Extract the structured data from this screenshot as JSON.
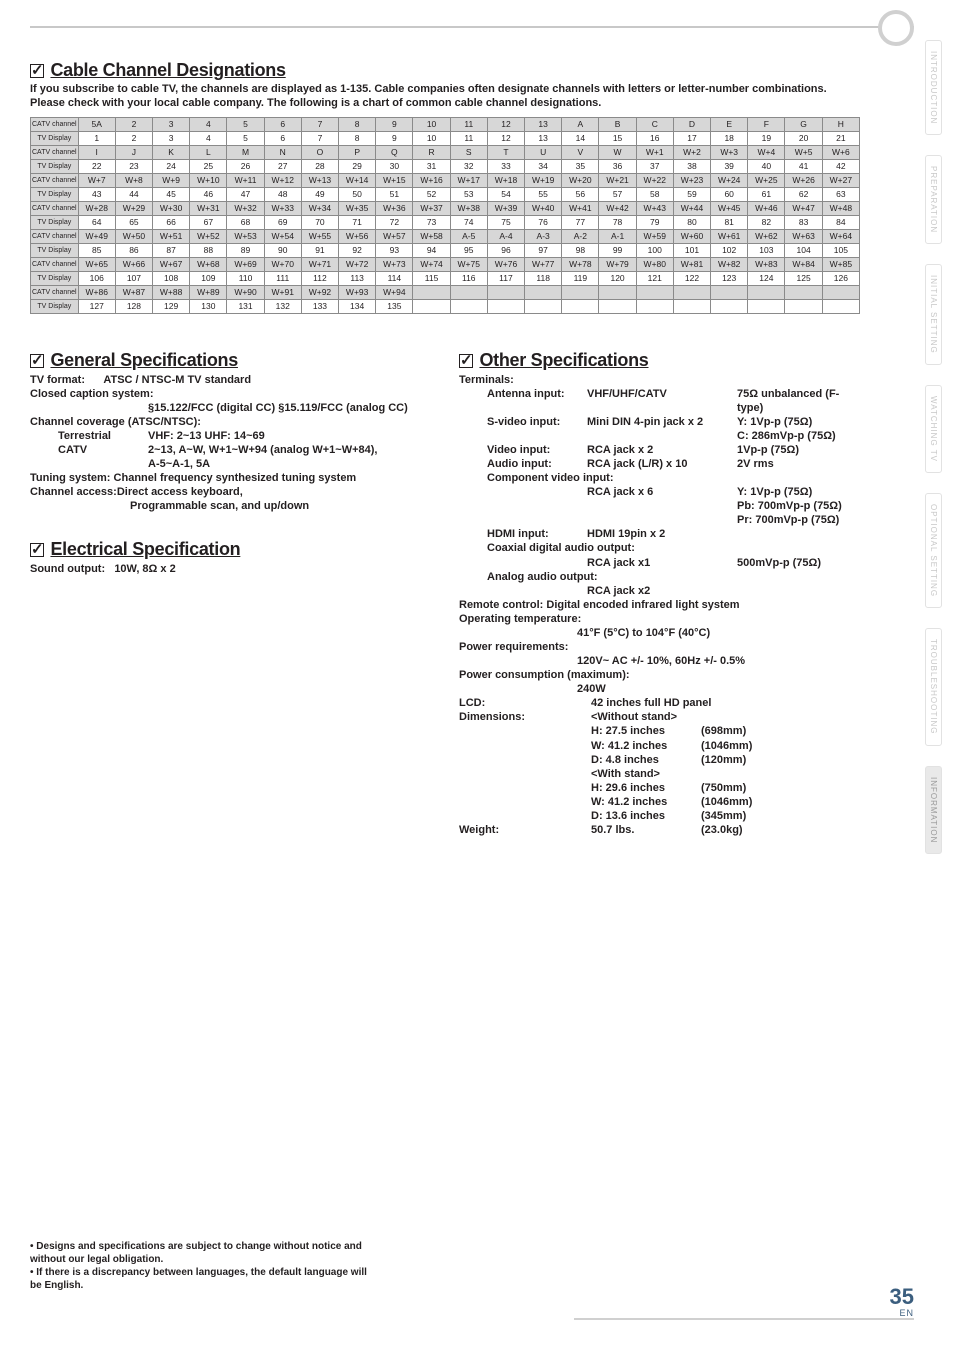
{
  "sidetabs": [
    "INTRODUCTION",
    "PREPARATION",
    "INITIAL SETTING",
    "WATCHING TV",
    "OPTIONAL SETTING",
    "TROUBLESHOOTING",
    "INFORMATION"
  ],
  "cable": {
    "title": "Cable Channel Designations",
    "intro": "If you subscribe to cable TV, the channels are displayed as 1-135. Cable companies often designate channels with letters or letter-number combinations. Please check with your local cable company. The following is a chart of common cable channel designations.",
    "row_labels": {
      "catv": "CATV channel",
      "tv": "TV Display"
    },
    "pairs": [
      {
        "catv": [
          "5A",
          "2",
          "3",
          "4",
          "5",
          "6",
          "7",
          "8",
          "9",
          "10",
          "11",
          "12",
          "13",
          "A",
          "B",
          "C",
          "D",
          "E",
          "F",
          "G",
          "H"
        ],
        "tv": [
          "1",
          "2",
          "3",
          "4",
          "5",
          "6",
          "7",
          "8",
          "9",
          "10",
          "11",
          "12",
          "13",
          "14",
          "15",
          "16",
          "17",
          "18",
          "19",
          "20",
          "21"
        ]
      },
      {
        "catv": [
          "I",
          "J",
          "K",
          "L",
          "M",
          "N",
          "O",
          "P",
          "Q",
          "R",
          "S",
          "T",
          "U",
          "V",
          "W",
          "W+1",
          "W+2",
          "W+3",
          "W+4",
          "W+5",
          "W+6"
        ],
        "tv": [
          "22",
          "23",
          "24",
          "25",
          "26",
          "27",
          "28",
          "29",
          "30",
          "31",
          "32",
          "33",
          "34",
          "35",
          "36",
          "37",
          "38",
          "39",
          "40",
          "41",
          "42"
        ]
      },
      {
        "catv": [
          "W+7",
          "W+8",
          "W+9",
          "W+10",
          "W+11",
          "W+12",
          "W+13",
          "W+14",
          "W+15",
          "W+16",
          "W+17",
          "W+18",
          "W+19",
          "W+20",
          "W+21",
          "W+22",
          "W+23",
          "W+24",
          "W+25",
          "W+26",
          "W+27"
        ],
        "tv": [
          "43",
          "44",
          "45",
          "46",
          "47",
          "48",
          "49",
          "50",
          "51",
          "52",
          "53",
          "54",
          "55",
          "56",
          "57",
          "58",
          "59",
          "60",
          "61",
          "62",
          "63"
        ]
      },
      {
        "catv": [
          "W+28",
          "W+29",
          "W+30",
          "W+31",
          "W+32",
          "W+33",
          "W+34",
          "W+35",
          "W+36",
          "W+37",
          "W+38",
          "W+39",
          "W+40",
          "W+41",
          "W+42",
          "W+43",
          "W+44",
          "W+45",
          "W+46",
          "W+47",
          "W+48"
        ],
        "tv": [
          "64",
          "65",
          "66",
          "67",
          "68",
          "69",
          "70",
          "71",
          "72",
          "73",
          "74",
          "75",
          "76",
          "77",
          "78",
          "79",
          "80",
          "81",
          "82",
          "83",
          "84"
        ]
      },
      {
        "catv": [
          "W+49",
          "W+50",
          "W+51",
          "W+52",
          "W+53",
          "W+54",
          "W+55",
          "W+56",
          "W+57",
          "W+58",
          "A-5",
          "A-4",
          "A-3",
          "A-2",
          "A-1",
          "W+59",
          "W+60",
          "W+61",
          "W+62",
          "W+63",
          "W+64"
        ],
        "tv": [
          "85",
          "86",
          "87",
          "88",
          "89",
          "90",
          "91",
          "92",
          "93",
          "94",
          "95",
          "96",
          "97",
          "98",
          "99",
          "100",
          "101",
          "102",
          "103",
          "104",
          "105"
        ]
      },
      {
        "catv": [
          "W+65",
          "W+66",
          "W+67",
          "W+68",
          "W+69",
          "W+70",
          "W+71",
          "W+72",
          "W+73",
          "W+74",
          "W+75",
          "W+76",
          "W+77",
          "W+78",
          "W+79",
          "W+80",
          "W+81",
          "W+82",
          "W+83",
          "W+84",
          "W+85"
        ],
        "tv": [
          "106",
          "107",
          "108",
          "109",
          "110",
          "111",
          "112",
          "113",
          "114",
          "115",
          "116",
          "117",
          "118",
          "119",
          "120",
          "121",
          "122",
          "123",
          "124",
          "125",
          "126"
        ]
      },
      {
        "catv": [
          "W+86",
          "W+87",
          "W+88",
          "W+89",
          "W+90",
          "W+91",
          "W+92",
          "W+93",
          "W+94",
          "",
          "",
          "",
          "",
          "",
          "",
          "",
          "",
          "",
          "",
          "",
          ""
        ],
        "tv": [
          "127",
          "128",
          "129",
          "130",
          "131",
          "132",
          "133",
          "134",
          "135",
          "",
          "",
          "",
          "",
          "",
          "",
          "",
          "",
          "",
          "",
          "",
          ""
        ]
      }
    ]
  },
  "general": {
    "title": "General Specifications",
    "tv_format_label": "TV format:",
    "tv_format": "ATSC / NTSC-M TV standard",
    "cc_label": "Closed caption system:",
    "cc": "§15.122/FCC (digital CC)    §15.119/FCC (analog CC)",
    "cov_label": "Channel coverage (ATSC/NTSC):",
    "terr_label": "Terrestrial",
    "terr": "VHF:  2~13   UHF:  14~69",
    "catv_label": "CATV",
    "catv1": "2~13, A~W, W+1~W+94 (analog W+1~W+84),",
    "catv2": "A-5~A-1, 5A",
    "tuning_label": "Tuning system:",
    "tuning": "Channel frequency synthesized tuning system",
    "chacc_label": "Channel access:",
    "chacc1": "Direct access keyboard,",
    "chacc2": "Programmable scan, and up/down"
  },
  "electrical": {
    "title": "Electrical Specification",
    "sound_label": "Sound output:",
    "sound": "10W, 8Ω x 2"
  },
  "other": {
    "title": "Other Specifications",
    "terminals_label": "Terminals:",
    "ant_k": "Antenna input:",
    "ant_v1": "VHF/UHF/CATV",
    "ant_v2": "75Ω unbalanced (F-type)",
    "svid_k": "S-video input:",
    "svid_v1": "Mini DIN 4-pin jack x 2",
    "svid_v2a": "Y: 1Vp-p (75Ω)",
    "svid_v2b": "C: 286mVp-p (75Ω)",
    "vid_k": "Video input:",
    "vid_v1": "RCA jack x 2",
    "vid_v2": "1Vp-p (75Ω)",
    "aud_k": "Audio input:",
    "aud_v1": "RCA jack (L/R) x 10",
    "aud_v2": "2V rms",
    "comp_k": "Component video input:",
    "comp_v1": "RCA jack x 6",
    "comp_y": "Y:   1Vp-p (75Ω)",
    "comp_pb": "Pb: 700mVp-p (75Ω)",
    "comp_pr": "Pr:  700mVp-p (75Ω)",
    "hdmi_k": "HDMI input:",
    "hdmi_v1": "HDMI 19pin x 2",
    "coax_k": "Coaxial digital audio output:",
    "coax_v1": "RCA jack x1",
    "coax_v2": "500mVp-p (75Ω)",
    "anout_k": "Analog audio output:",
    "anout_v1": "RCA jack x2",
    "remote_label": "Remote control:",
    "remote": "Digital encoded infrared light system",
    "optemp_label": "Operating temperature:",
    "optemp": "41°F (5°C) to 104°F (40°C)",
    "power_label": "Power requirements:",
    "power": "120V~ AC +/- 10%, 60Hz +/- 0.5%",
    "pcons_label": "Power consumption (maximum):",
    "pcons": "240W",
    "lcd_label": "LCD:",
    "lcd": "42 inches full HD panel",
    "dim_label": "Dimensions:",
    "dim_wo": "<Without stand>",
    "dim_h1k": "H:  27.5 inches",
    "dim_h1v": "(698mm)",
    "dim_w1k": "W: 41.2 inches",
    "dim_w1v": "(1046mm)",
    "dim_d1k": "D:  4.8 inches",
    "dim_d1v": "(120mm)",
    "dim_ws": "<With stand>",
    "dim_h2k": "H:  29.6 inches",
    "dim_h2v": "(750mm)",
    "dim_w2k": "W: 41.2 inches",
    "dim_w2v": "(1046mm)",
    "dim_d2k": "D:  13.6 inches",
    "dim_d2v": "(345mm)",
    "weight_label": "Weight:",
    "weight_k": "50.7 lbs.",
    "weight_v": "(23.0kg)"
  },
  "footer": {
    "l1": "• Designs and specifications are subject to change without notice and",
    "l2": "  without our legal obligation.",
    "l3": "• If there is a discrepancy between languages, the default language will",
    "l4": "  be English."
  },
  "page": {
    "num": "35",
    "en": "EN"
  }
}
